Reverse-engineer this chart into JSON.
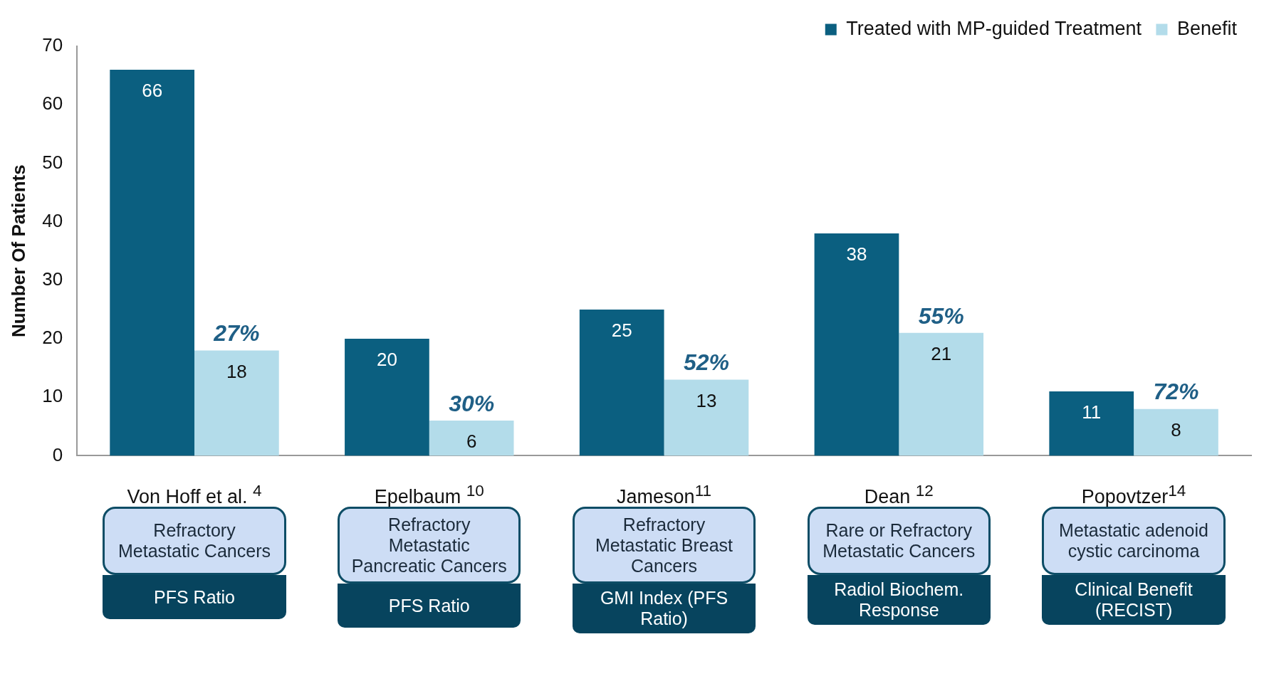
{
  "chart_data": {
    "type": "bar",
    "ylabel": "Number Of Patients",
    "categories": [
      "Von Hoff et al. $^{4}$",
      "Epelbaum $^{10}$",
      "Jameson$^{11}$",
      "Dean $^{12}$",
      "Popovtzer$^{14}$"
    ],
    "series": [
      {
        "name": "Treated with MP-guided Treatment",
        "color": "#0b5f80",
        "values": [
          66,
          20,
          25,
          38,
          11
        ]
      },
      {
        "name": "Benefit",
        "color": "#b3dcea",
        "values": [
          18,
          6,
          13,
          21,
          8
        ]
      }
    ],
    "ylim": [
      0,
      70
    ],
    "yticks": [
      0,
      10,
      20,
      30,
      40,
      50,
      60,
      70
    ],
    "grid": false,
    "legend": "top right",
    "data_labels": true,
    "annotations": [
      {
        "text": "27%",
        "x": "Von Hoff et al. $^{4}$",
        "y": 18
      },
      {
        "text": "30%",
        "x": "Epelbaum $^{10}$",
        "y": 6
      },
      {
        "text": "52%",
        "x": "Jameson$^{11}$",
        "y": 13
      },
      {
        "text": "55%",
        "x": "Dean $^{12}$",
        "y": 21
      },
      {
        "text": "72%",
        "x": "Popovtzer$^{14}$",
        "y": 8
      },
      "Refractory Metastatic Cancers",
      "PFS Ratio",
      "Refractory Metastatic Pancreatic Cancers",
      "PFS Ratio",
      "Refractory Metastatic Breast Cancers",
      "GMI Index (PFS Ratio)",
      "Rare or Refractory Metastatic Cancers",
      "Radiol  Biochem. Response",
      "Metastatic adenoid cystic carcinoma",
      "Clinical Benefit (RECIST)"
    ]
  }
}
